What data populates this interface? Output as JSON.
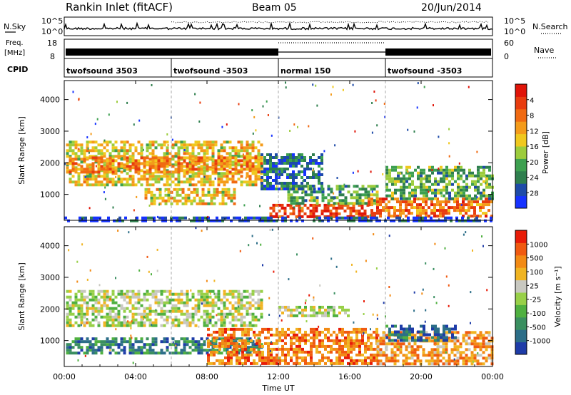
{
  "header": {
    "title": "Rankin Inlet (fitACF)",
    "beam": "Beam 05",
    "date": "20/Jun/2014"
  },
  "top_panels": {
    "nsky": {
      "label": "N.Sky",
      "left_ticks": [
        "10^5",
        "10^0"
      ],
      "right_ticks": [
        "10^5",
        "10^0"
      ],
      "right_label": "N.Search"
    },
    "freq": {
      "label_line1": "Freq.",
      "label_line2": "[MHz]",
      "left_ticks": [
        "18",
        "8"
      ],
      "right_ticks": [
        "60",
        "0"
      ],
      "right_label": "Nave"
    },
    "cpid": {
      "label": "CPID",
      "segments": [
        {
          "label": "twofsound 3503",
          "start": 0,
          "end": 6
        },
        {
          "label": "twofsound -3503",
          "start": 6,
          "end": 12
        },
        {
          "label": "normal 150",
          "start": 12,
          "end": 18
        },
        {
          "label": "twofsound -3503",
          "start": 18,
          "end": 24
        }
      ]
    }
  },
  "x_axis": {
    "label": "Time UT",
    "ticks": [
      "00:00",
      "04:00",
      "08:00",
      "12:00",
      "16:00",
      "20:00",
      "00:00"
    ]
  },
  "chart_data": [
    {
      "type": "heatmap",
      "name": "power",
      "ylabel": "Slant Range [km]",
      "xlabel": "",
      "xlim": [
        0,
        24
      ],
      "ylim": [
        180,
        4600
      ],
      "yticks": [
        "1000",
        "2000",
        "3000",
        "4000"
      ],
      "yticks_values": [
        1000,
        2000,
        3000,
        4000
      ],
      "colorbar": {
        "label": "Power [dB]",
        "tick_labels": [
          "4",
          "8",
          "12",
          "16",
          "20",
          "24",
          "28"
        ],
        "colors": [
          "#1632ff",
          "#1e4ba8",
          "#2f7f4e",
          "#3da050",
          "#9ccc3c",
          "#f0c81e",
          "#f49b1a",
          "#f06a12",
          "#e83c0e",
          "#e01408"
        ]
      },
      "regions": [
        {
          "t0": 0.1,
          "t1": 11.0,
          "r0": 1300,
          "r1": 2700,
          "level": 0.55
        },
        {
          "t0": 0.1,
          "t1": 11.0,
          "r0": 1700,
          "r1": 2200,
          "level": 0.7
        },
        {
          "t0": 4.5,
          "t1": 9.5,
          "r0": 700,
          "r1": 1200,
          "level": 0.55
        },
        {
          "t0": 11.5,
          "t1": 17.0,
          "r0": 250,
          "r1": 700,
          "level": 0.85
        },
        {
          "t0": 12.5,
          "t1": 17.5,
          "r0": 700,
          "r1": 1300,
          "level": 0.35
        },
        {
          "t0": 17.0,
          "t1": 24.0,
          "r0": 300,
          "r1": 900,
          "level": 0.75
        },
        {
          "t0": 18.0,
          "t1": 24.0,
          "r0": 900,
          "r1": 1900,
          "level": 0.35
        },
        {
          "t0": 11.0,
          "t1": 14.5,
          "r0": 1200,
          "r1": 2300,
          "level": 0.2
        },
        {
          "t0": 0.0,
          "t1": 24.0,
          "r0": 180,
          "r1": 300,
          "level": 0.1
        }
      ]
    },
    {
      "type": "heatmap",
      "name": "velocity",
      "ylabel": "Slant Range [km]",
      "xlabel": "Time UT",
      "xlim": [
        0,
        24
      ],
      "ylim": [
        180,
        4600
      ],
      "yticks": [
        "1000",
        "2000",
        "3000",
        "4000"
      ],
      "yticks_values": [
        1000,
        2000,
        3000,
        4000
      ],
      "colorbar": {
        "label": "Velocity [m s⁻¹]",
        "tick_labels": [
          "1000",
          "500",
          "100",
          "25",
          "-25",
          "-100",
          "-500",
          "-1000"
        ],
        "colors": [
          "#1e3ca8",
          "#2c6e88",
          "#3a8f60",
          "#4fb040",
          "#98d048",
          "#c8c8c0",
          "#f0b422",
          "#f28a14",
          "#f05a10",
          "#e81c08"
        ]
      },
      "regions": [
        {
          "t0": 0.1,
          "t1": 11.0,
          "r0": 1500,
          "r1": 2600,
          "level": 0.5
        },
        {
          "t0": 0.1,
          "t1": 11.0,
          "r0": 600,
          "r1": 1100,
          "level": 0.22
        },
        {
          "t0": 8.0,
          "t1": 17.5,
          "r0": 250,
          "r1": 1400,
          "level": 0.78
        },
        {
          "t0": 17.5,
          "t1": 24.0,
          "r0": 300,
          "r1": 1300,
          "level": 0.72
        },
        {
          "t0": 18.0,
          "t1": 22.0,
          "r0": 1000,
          "r1": 1500,
          "level": 0.15
        },
        {
          "t0": 12.0,
          "t1": 16.0,
          "r0": 1800,
          "r1": 2100,
          "level": 0.5
        }
      ]
    }
  ]
}
